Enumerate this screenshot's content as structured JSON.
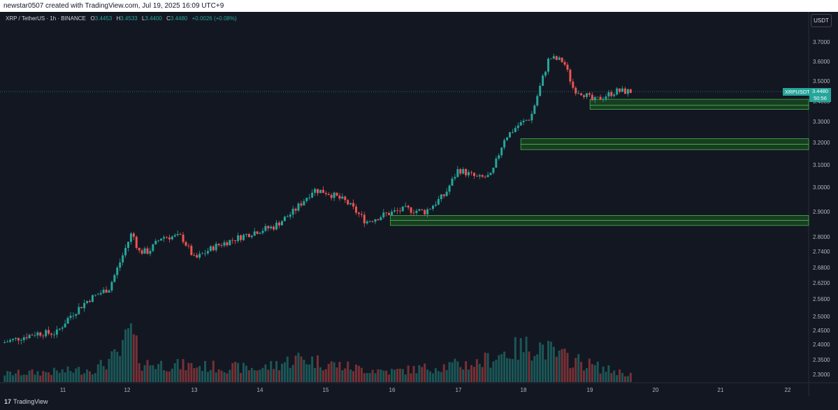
{
  "header": {
    "credit": "newstar0507 created with TradingView.com, Jul 19, 2025 16:09 UTC+9"
  },
  "symbol": {
    "title": "XRP / TetherUS · 1h · BINANCE",
    "open_label": "O",
    "open": "3.4453",
    "high_label": "H",
    "high": "3.4533",
    "low_label": "L",
    "low": "3.4400",
    "close_label": "C",
    "close": "3.4480",
    "change": "+0.0026 (+0.08%)"
  },
  "currency_button": "USDT",
  "price_badge": {
    "ticker": "XRPUSDT",
    "price": "3.4480",
    "countdown": "50:56"
  },
  "footer": {
    "logo_mark": "17",
    "logo_text": "TradingView"
  },
  "colors": {
    "up": "#26a69a",
    "down": "#ef5350",
    "zone_fill": "#1b5e20",
    "zone_border": "#4caf50",
    "background": "#131722"
  },
  "chart_data": {
    "type": "candlestick",
    "y_ticks": [
      "3.7000",
      "3.6000",
      "3.5000",
      "3.4000",
      "3.3000",
      "3.2000",
      "3.1000",
      "3.0000",
      "2.9000",
      "2.8000",
      "2.7400",
      "2.6800",
      "2.6200",
      "2.5600",
      "2.5000",
      "2.4500",
      "2.4000",
      "2.3500",
      "2.3000"
    ],
    "x_ticks": [
      "11",
      "12",
      "13",
      "14",
      "15",
      "16",
      "17",
      "18",
      "19",
      "20",
      "21",
      "22"
    ],
    "current_price": 3.448,
    "ohlc_anchors": [
      [
        10.0,
        2.4
      ],
      [
        10.3,
        2.42
      ],
      [
        10.6,
        2.44
      ],
      [
        10.9,
        2.44
      ],
      [
        11.1,
        2.5
      ],
      [
        11.4,
        2.56
      ],
      [
        11.7,
        2.6
      ],
      [
        11.9,
        2.72
      ],
      [
        12.05,
        2.82
      ],
      [
        12.15,
        2.74
      ],
      [
        12.3,
        2.74
      ],
      [
        12.5,
        2.8
      ],
      [
        12.8,
        2.8
      ],
      [
        13.0,
        2.71
      ],
      [
        13.3,
        2.76
      ],
      [
        13.6,
        2.79
      ],
      [
        13.9,
        2.82
      ],
      [
        14.2,
        2.84
      ],
      [
        14.5,
        2.9
      ],
      [
        14.8,
        2.99
      ],
      [
        15.0,
        2.98
      ],
      [
        15.3,
        2.94
      ],
      [
        15.6,
        2.86
      ],
      [
        15.9,
        2.89
      ],
      [
        16.2,
        2.91
      ],
      [
        16.5,
        2.9
      ],
      [
        16.8,
        2.97
      ],
      [
        17.0,
        3.08
      ],
      [
        17.3,
        3.04
      ],
      [
        17.5,
        3.05
      ],
      [
        17.7,
        3.22
      ],
      [
        17.9,
        3.28
      ],
      [
        18.1,
        3.32
      ],
      [
        18.25,
        3.48
      ],
      [
        18.38,
        3.62
      ],
      [
        18.6,
        3.6
      ],
      [
        18.75,
        3.46
      ],
      [
        18.9,
        3.44
      ],
      [
        19.05,
        3.4
      ],
      [
        19.25,
        3.43
      ],
      [
        19.4,
        3.45
      ],
      [
        19.6,
        3.448
      ]
    ],
    "volume_profile": [
      [
        10.0,
        0.15
      ],
      [
        11.0,
        0.2
      ],
      [
        11.5,
        0.25
      ],
      [
        11.9,
        0.55
      ],
      [
        12.0,
        1.0
      ],
      [
        12.2,
        0.35
      ],
      [
        13.0,
        0.3
      ],
      [
        14.0,
        0.25
      ],
      [
        14.6,
        0.45
      ],
      [
        15.0,
        0.35
      ],
      [
        15.5,
        0.25
      ],
      [
        16.0,
        0.2
      ],
      [
        16.8,
        0.3
      ],
      [
        17.3,
        0.35
      ],
      [
        17.7,
        0.55
      ],
      [
        18.2,
        0.7
      ],
      [
        18.5,
        0.5
      ],
      [
        18.8,
        0.4
      ],
      [
        19.2,
        0.25
      ],
      [
        19.6,
        0.15
      ]
    ],
    "demand_zones": [
      {
        "from_day": 19.0,
        "y_top": 3.41,
        "y_mid": 3.38,
        "y_bottom": 3.36
      },
      {
        "from_day": 17.95,
        "y_top": 3.218,
        "y_mid": 3.192,
        "y_bottom": 3.168
      },
      {
        "from_day": 15.97,
        "y_top": 2.885,
        "y_mid": 2.865,
        "y_bottom": 2.845
      }
    ]
  }
}
